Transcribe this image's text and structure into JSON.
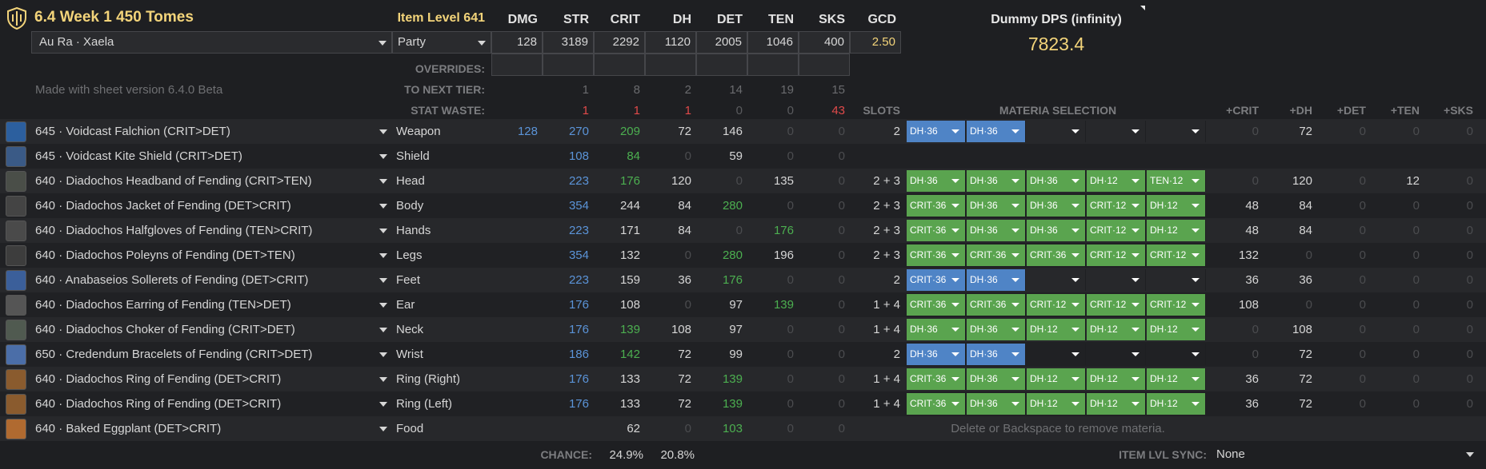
{
  "header": {
    "title": "6.4 Week 1 450 Tomes",
    "item_level": "Item Level 641",
    "race": "Au Ra · Xaela",
    "party": "Party",
    "made_with": "Made with sheet version 6.4.0 Beta",
    "dummy_title": "Dummy DPS (infinity)",
    "dummy_dps": "7823.4"
  },
  "stats": {
    "headers": [
      "DMG",
      "STR",
      "CRIT",
      "DH",
      "DET",
      "TEN",
      "SKS",
      "GCD"
    ],
    "values": [
      "128",
      "3189",
      "2292",
      "1120",
      "2005",
      "1046",
      "400",
      "2.50"
    ]
  },
  "labels": {
    "overrides": "OVERRIDES:",
    "to_next_tier": "TO NEXT TIER:",
    "stat_waste": "STAT WASTE:",
    "slots": "SLOTS",
    "materia_selection": "MATERIA SELECTION",
    "chance": "CHANCE:",
    "item_lvl_sync": "ITEM LVL SYNC:",
    "hint": "Delete or Backspace to remove materia."
  },
  "next_tier": [
    "1",
    "8",
    "2",
    "14",
    "19",
    "15"
  ],
  "stat_waste": [
    "1",
    "1",
    "1",
    "0",
    "0",
    "43"
  ],
  "materia_headers": [
    "+CRIT",
    "+DH",
    "+DET",
    "+TEN",
    "+SKS"
  ],
  "chance": [
    "24.9%",
    "20.8%"
  ],
  "sync_value": "None",
  "colors": {
    "accent": "#f3d47a",
    "materia_green": "#5aa44f",
    "materia_blue": "#4f84c6",
    "stat_blue": "#5b94d8",
    "stat_green": "#4caf50",
    "stat_red": "#e04a4a"
  },
  "gear": [
    {
      "name": "645 · Voidcast Falchion (CRIT>DET)",
      "slot": "Weapon",
      "icon": "sword-icon",
      "dmg": "128",
      "str": "270",
      "crit": "209",
      "dh": "72",
      "det": "146",
      "ten": "0",
      "sks": "0",
      "slots": "2",
      "materia": [
        [
          "DH·36",
          "b"
        ],
        [
          "DH·36",
          "b"
        ],
        [
          "",
          "e"
        ],
        [
          "",
          "e"
        ],
        [
          "",
          "e"
        ]
      ],
      "plus": [
        "0",
        "72",
        "0",
        "0",
        "0"
      ]
    },
    {
      "name": "645 · Voidcast Kite Shield (CRIT>DET)",
      "slot": "Shield",
      "icon": "shield-item-icon",
      "dmg": "",
      "str": "108",
      "crit": "84",
      "dh": "0",
      "det": "59",
      "ten": "0",
      "sks": "0",
      "slots": "",
      "materia": [],
      "plus": []
    },
    {
      "name": "640 · Diadochos Headband of Fending (CRIT>TEN)",
      "slot": "Head",
      "icon": "headband-icon",
      "dmg": "",
      "str": "223",
      "crit": "176",
      "dh": "120",
      "det": "0",
      "ten": "135",
      "sks": "0",
      "slots": "2 + 3",
      "materia": [
        [
          "DH·36",
          "g"
        ],
        [
          "DH·36",
          "g"
        ],
        [
          "DH·36",
          "g"
        ],
        [
          "DH·12",
          "g"
        ],
        [
          "TEN·12",
          "g"
        ]
      ],
      "plus": [
        "0",
        "120",
        "0",
        "12",
        "0"
      ]
    },
    {
      "name": "640 · Diadochos Jacket of Fending (DET>CRIT)",
      "slot": "Body",
      "icon": "jacket-icon",
      "dmg": "",
      "str": "354",
      "crit": "244",
      "dh": "84",
      "det": "280",
      "ten": "0",
      "sks": "0",
      "slots": "2 + 3",
      "materia": [
        [
          "CRIT·36",
          "g"
        ],
        [
          "DH·36",
          "g"
        ],
        [
          "DH·36",
          "g"
        ],
        [
          "CRIT·12",
          "g"
        ],
        [
          "DH·12",
          "g"
        ]
      ],
      "plus": [
        "48",
        "84",
        "0",
        "0",
        "0"
      ]
    },
    {
      "name": "640 · Diadochos Halfgloves of Fending (TEN>CRIT)",
      "slot": "Hands",
      "icon": "gloves-icon",
      "dmg": "",
      "str": "223",
      "crit": "171",
      "dh": "84",
      "det": "0",
      "ten": "176",
      "sks": "0",
      "slots": "2 + 3",
      "materia": [
        [
          "CRIT·36",
          "g"
        ],
        [
          "DH·36",
          "g"
        ],
        [
          "DH·36",
          "g"
        ],
        [
          "CRIT·12",
          "g"
        ],
        [
          "DH·12",
          "g"
        ]
      ],
      "plus": [
        "48",
        "84",
        "0",
        "0",
        "0"
      ]
    },
    {
      "name": "640 · Diadochos Poleyns of Fending (DET>TEN)",
      "slot": "Legs",
      "icon": "legs-icon",
      "dmg": "",
      "str": "354",
      "crit": "132",
      "dh": "0",
      "det": "280",
      "ten": "196",
      "sks": "0",
      "slots": "2 + 3",
      "materia": [
        [
          "CRIT·36",
          "g"
        ],
        [
          "CRIT·36",
          "g"
        ],
        [
          "CRIT·36",
          "g"
        ],
        [
          "CRIT·12",
          "g"
        ],
        [
          "CRIT·12",
          "g"
        ]
      ],
      "plus": [
        "132",
        "0",
        "0",
        "0",
        "0"
      ]
    },
    {
      "name": "640 · Anabaseios Sollerets of Fending (DET>CRIT)",
      "slot": "Feet",
      "icon": "boots-icon",
      "dmg": "",
      "str": "223",
      "crit": "159",
      "dh": "36",
      "det": "176",
      "ten": "0",
      "sks": "0",
      "slots": "2",
      "materia": [
        [
          "CRIT·36",
          "b"
        ],
        [
          "DH·36",
          "b"
        ],
        [
          "",
          "e"
        ],
        [
          "",
          "e"
        ],
        [
          "",
          "e"
        ]
      ],
      "plus": [
        "36",
        "36",
        "0",
        "0",
        "0"
      ]
    },
    {
      "name": "640 · Diadochos Earring of Fending (TEN>DET)",
      "slot": "Ear",
      "icon": "earring-icon",
      "dmg": "",
      "str": "176",
      "crit": "108",
      "dh": "0",
      "det": "97",
      "ten": "139",
      "sks": "0",
      "slots": "1 + 4",
      "materia": [
        [
          "CRIT·36",
          "g"
        ],
        [
          "CRIT·36",
          "g"
        ],
        [
          "CRIT·12",
          "g"
        ],
        [
          "CRIT·12",
          "g"
        ],
        [
          "CRIT·12",
          "g"
        ]
      ],
      "plus": [
        "108",
        "0",
        "0",
        "0",
        "0"
      ]
    },
    {
      "name": "640 · Diadochos Choker of Fending (CRIT>DET)",
      "slot": "Neck",
      "icon": "necklace-icon",
      "dmg": "",
      "str": "176",
      "crit": "139",
      "dh": "108",
      "det": "97",
      "ten": "0",
      "sks": "0",
      "slots": "1 + 4",
      "materia": [
        [
          "DH·36",
          "g"
        ],
        [
          "DH·36",
          "g"
        ],
        [
          "DH·12",
          "g"
        ],
        [
          "DH·12",
          "g"
        ],
        [
          "DH·12",
          "g"
        ]
      ],
      "plus": [
        "0",
        "108",
        "0",
        "0",
        "0"
      ]
    },
    {
      "name": "650 · Credendum Bracelets of Fending (CRIT>DET)",
      "slot": "Wrist",
      "icon": "bracelet-icon",
      "dmg": "",
      "str": "186",
      "crit": "142",
      "dh": "72",
      "det": "99",
      "ten": "0",
      "sks": "0",
      "slots": "2",
      "materia": [
        [
          "DH·36",
          "b"
        ],
        [
          "DH·36",
          "b"
        ],
        [
          "",
          "e"
        ],
        [
          "",
          "e"
        ],
        [
          "",
          "e"
        ]
      ],
      "plus": [
        "0",
        "72",
        "0",
        "0",
        "0"
      ]
    },
    {
      "name": "640 · Diadochos Ring of Fending (DET>CRIT)",
      "slot": "Ring (Right)",
      "icon": "ring-icon",
      "dmg": "",
      "str": "176",
      "crit": "133",
      "dh": "72",
      "det": "139",
      "ten": "0",
      "sks": "0",
      "slots": "1 + 4",
      "materia": [
        [
          "CRIT·36",
          "g"
        ],
        [
          "DH·36",
          "g"
        ],
        [
          "DH·12",
          "g"
        ],
        [
          "DH·12",
          "g"
        ],
        [
          "DH·12",
          "g"
        ]
      ],
      "plus": [
        "36",
        "72",
        "0",
        "0",
        "0"
      ]
    },
    {
      "name": "640 · Diadochos Ring of Fending (DET>CRIT)",
      "slot": "Ring (Left)",
      "icon": "ring-icon",
      "dmg": "",
      "str": "176",
      "crit": "133",
      "dh": "72",
      "det": "139",
      "ten": "0",
      "sks": "0",
      "slots": "1 + 4",
      "materia": [
        [
          "CRIT·36",
          "g"
        ],
        [
          "DH·36",
          "g"
        ],
        [
          "DH·12",
          "g"
        ],
        [
          "DH·12",
          "g"
        ],
        [
          "DH·12",
          "g"
        ]
      ],
      "plus": [
        "36",
        "72",
        "0",
        "0",
        "0"
      ]
    },
    {
      "name": "640 · Baked Eggplant (DET>CRIT)",
      "slot": "Food",
      "icon": "food-icon",
      "dmg": "",
      "str": "",
      "crit": "62",
      "dh": "0",
      "det": "103",
      "ten": "0",
      "sks": "0",
      "slots": "",
      "materia": [],
      "plus": []
    }
  ]
}
